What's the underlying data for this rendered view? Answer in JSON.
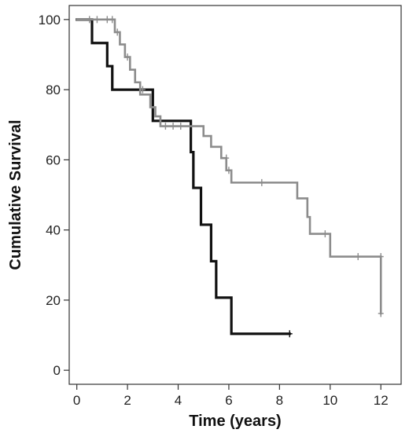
{
  "chart_data": {
    "type": "line",
    "title": "",
    "xlabel": "Time (years)",
    "ylabel": "Cumulative Survival",
    "xlim": [
      -0.3,
      12.8
    ],
    "ylim": [
      -4,
      104
    ],
    "x_ticks": [
      0,
      2,
      4,
      6,
      8,
      10,
      12
    ],
    "y_ticks": [
      0,
      20,
      40,
      60,
      80,
      100
    ],
    "x_tick_labels": [
      "0",
      "2",
      "4",
      "6",
      "8",
      "10",
      "12"
    ],
    "y_tick_labels": [
      "0",
      "20",
      "40",
      "60",
      "80",
      "100"
    ],
    "grid": false,
    "legend": "none",
    "series": [
      {
        "color": "#111111",
        "step_points": [
          [
            0,
            100
          ],
          [
            0.6,
            93.3
          ],
          [
            1.2,
            86.7
          ],
          [
            1.4,
            80
          ],
          [
            3.0,
            71.1
          ],
          [
            4.5,
            62.2
          ],
          [
            4.6,
            52
          ],
          [
            4.9,
            41.5
          ],
          [
            5.3,
            31.1
          ],
          [
            5.5,
            20.7
          ],
          [
            6.1,
            10.4
          ],
          [
            8.4,
            10.4
          ]
        ],
        "censor_points": [
          [
            8.4,
            10.4
          ]
        ]
      },
      {
        "color": "#8c8c8c",
        "step_points": [
          [
            0,
            100
          ],
          [
            1.5,
            96.4
          ],
          [
            1.7,
            92.9
          ],
          [
            1.9,
            89.3
          ],
          [
            2.1,
            85.7
          ],
          [
            2.3,
            82.1
          ],
          [
            2.5,
            78.6
          ],
          [
            2.9,
            75
          ],
          [
            3.1,
            72.4
          ],
          [
            3.3,
            69.6
          ],
          [
            5.0,
            66.8
          ],
          [
            5.3,
            63.7
          ],
          [
            5.7,
            60.5
          ],
          [
            5.9,
            57
          ],
          [
            6.1,
            53.5
          ],
          [
            8.7,
            49
          ],
          [
            9.1,
            43.7
          ],
          [
            9.2,
            38.9
          ],
          [
            10.0,
            32.4
          ],
          [
            12.0,
            16.2
          ]
        ],
        "censor_points": [
          [
            0.5,
            100
          ],
          [
            0.8,
            100
          ],
          [
            1.2,
            100
          ],
          [
            1.4,
            100
          ],
          [
            1.6,
            96.4
          ],
          [
            2.0,
            89.3
          ],
          [
            2.6,
            80
          ],
          [
            3.5,
            69.6
          ],
          [
            3.8,
            69.6
          ],
          [
            4.1,
            69.6
          ],
          [
            5.9,
            60.5
          ],
          [
            6.0,
            57
          ],
          [
            7.3,
            53.5
          ],
          [
            9.8,
            38.9
          ],
          [
            11.1,
            32.4
          ],
          [
            12.0,
            32.4
          ],
          [
            12.0,
            16.2
          ]
        ]
      }
    ]
  }
}
